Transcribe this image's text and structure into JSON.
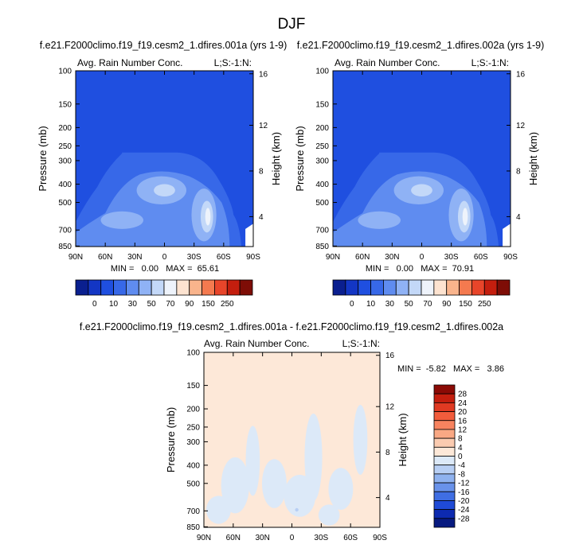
{
  "page_title": "DJF",
  "chart_data": [
    {
      "type": "heatmap",
      "title": "f.e21.F2000climo.f19_f19.cesm2_1.dfires.001a (yrs 1-9)",
      "left_label": "Avg. Rain Number Conc.",
      "right_label": "L;S:-1:N:",
      "xlabel": "",
      "ylabel": "Pressure (mb)",
      "y2label": "Height (km)",
      "x_ticks": [
        "90N",
        "60N",
        "30N",
        "0",
        "30S",
        "60S",
        "90S"
      ],
      "y_ticks": [
        "100",
        "150",
        "200",
        "250",
        "300",
        "400",
        "500",
        "700",
        "850"
      ],
      "y2_ticks": [
        "16",
        "12",
        "8",
        "4"
      ],
      "stats": "MIN =   0.00   MAX =  65.61",
      "colorbar": {
        "levels": [
          "0",
          "10",
          "30",
          "50",
          "70",
          "90",
          "150",
          "250"
        ],
        "colors": [
          "#0a1f8f",
          "#1336c4",
          "#1f4fe0",
          "#3768e8",
          "#5f8cf0",
          "#8fb2f5",
          "#c3d8f8",
          "#eef3fb",
          "#fde3d0",
          "#f9b48c",
          "#f47a4f",
          "#e8452a",
          "#c41e0e",
          "#7e0d06"
        ]
      }
    },
    {
      "type": "heatmap",
      "title": "f.e21.F2000climo.f19_f19.cesm2_1.dfires.002a (yrs 1-9)",
      "left_label": "Avg. Rain Number Conc.",
      "right_label": "L;S:-1:N:",
      "xlabel": "",
      "ylabel": "Pressure (mb)",
      "y2label": "Height (km)",
      "x_ticks": [
        "90N",
        "60N",
        "30N",
        "0",
        "30S",
        "60S",
        "90S"
      ],
      "y_ticks": [
        "100",
        "150",
        "200",
        "250",
        "300",
        "400",
        "500",
        "700",
        "850"
      ],
      "y2_ticks": [
        "16",
        "12",
        "8",
        "4"
      ],
      "stats": "MIN =   0.00   MAX =  70.91",
      "colorbar": {
        "levels": [
          "0",
          "10",
          "30",
          "50",
          "70",
          "90",
          "150",
          "250"
        ],
        "colors": [
          "#0a1f8f",
          "#1336c4",
          "#1f4fe0",
          "#3768e8",
          "#5f8cf0",
          "#8fb2f5",
          "#c3d8f8",
          "#eef3fb",
          "#fde3d0",
          "#f9b48c",
          "#f47a4f",
          "#e8452a",
          "#c41e0e",
          "#7e0d06"
        ]
      }
    },
    {
      "type": "heatmap",
      "title": "f.e21.F2000climo.f19_f19.cesm2_1.dfires.001a - f.e21.F2000climo.f19_f19.cesm2_1.dfires.002a",
      "left_label": "Avg. Rain Number Conc.",
      "right_label": "L;S:-1:N:",
      "xlabel": "",
      "ylabel": "Pressure (mb)",
      "y2label": "Height (km)",
      "x_ticks": [
        "90N",
        "60N",
        "30N",
        "0",
        "30S",
        "60S",
        "90S"
      ],
      "y_ticks": [
        "100",
        "150",
        "200",
        "250",
        "300",
        "400",
        "500",
        "700",
        "850"
      ],
      "y2_ticks": [
        "16",
        "12",
        "8",
        "4"
      ],
      "stats": "MIN =  -5.82   MAX =   3.86",
      "colorbar": {
        "levels": [
          "28",
          "24",
          "20",
          "16",
          "12",
          "8",
          "4",
          "0",
          "-4",
          "-8",
          "-12",
          "-16",
          "-20",
          "-24",
          "-28"
        ],
        "colors": [
          "#8b0a05",
          "#c41e0e",
          "#e03a22",
          "#f25c3c",
          "#f7835f",
          "#f9a884",
          "#fbcbb0",
          "#fde8d8",
          "#dce9f8",
          "#b8cff4",
          "#8fb2ef",
          "#6992ea",
          "#3f6ee3",
          "#1f4ad6",
          "#0d2ab0",
          "#071a80"
        ]
      }
    }
  ]
}
